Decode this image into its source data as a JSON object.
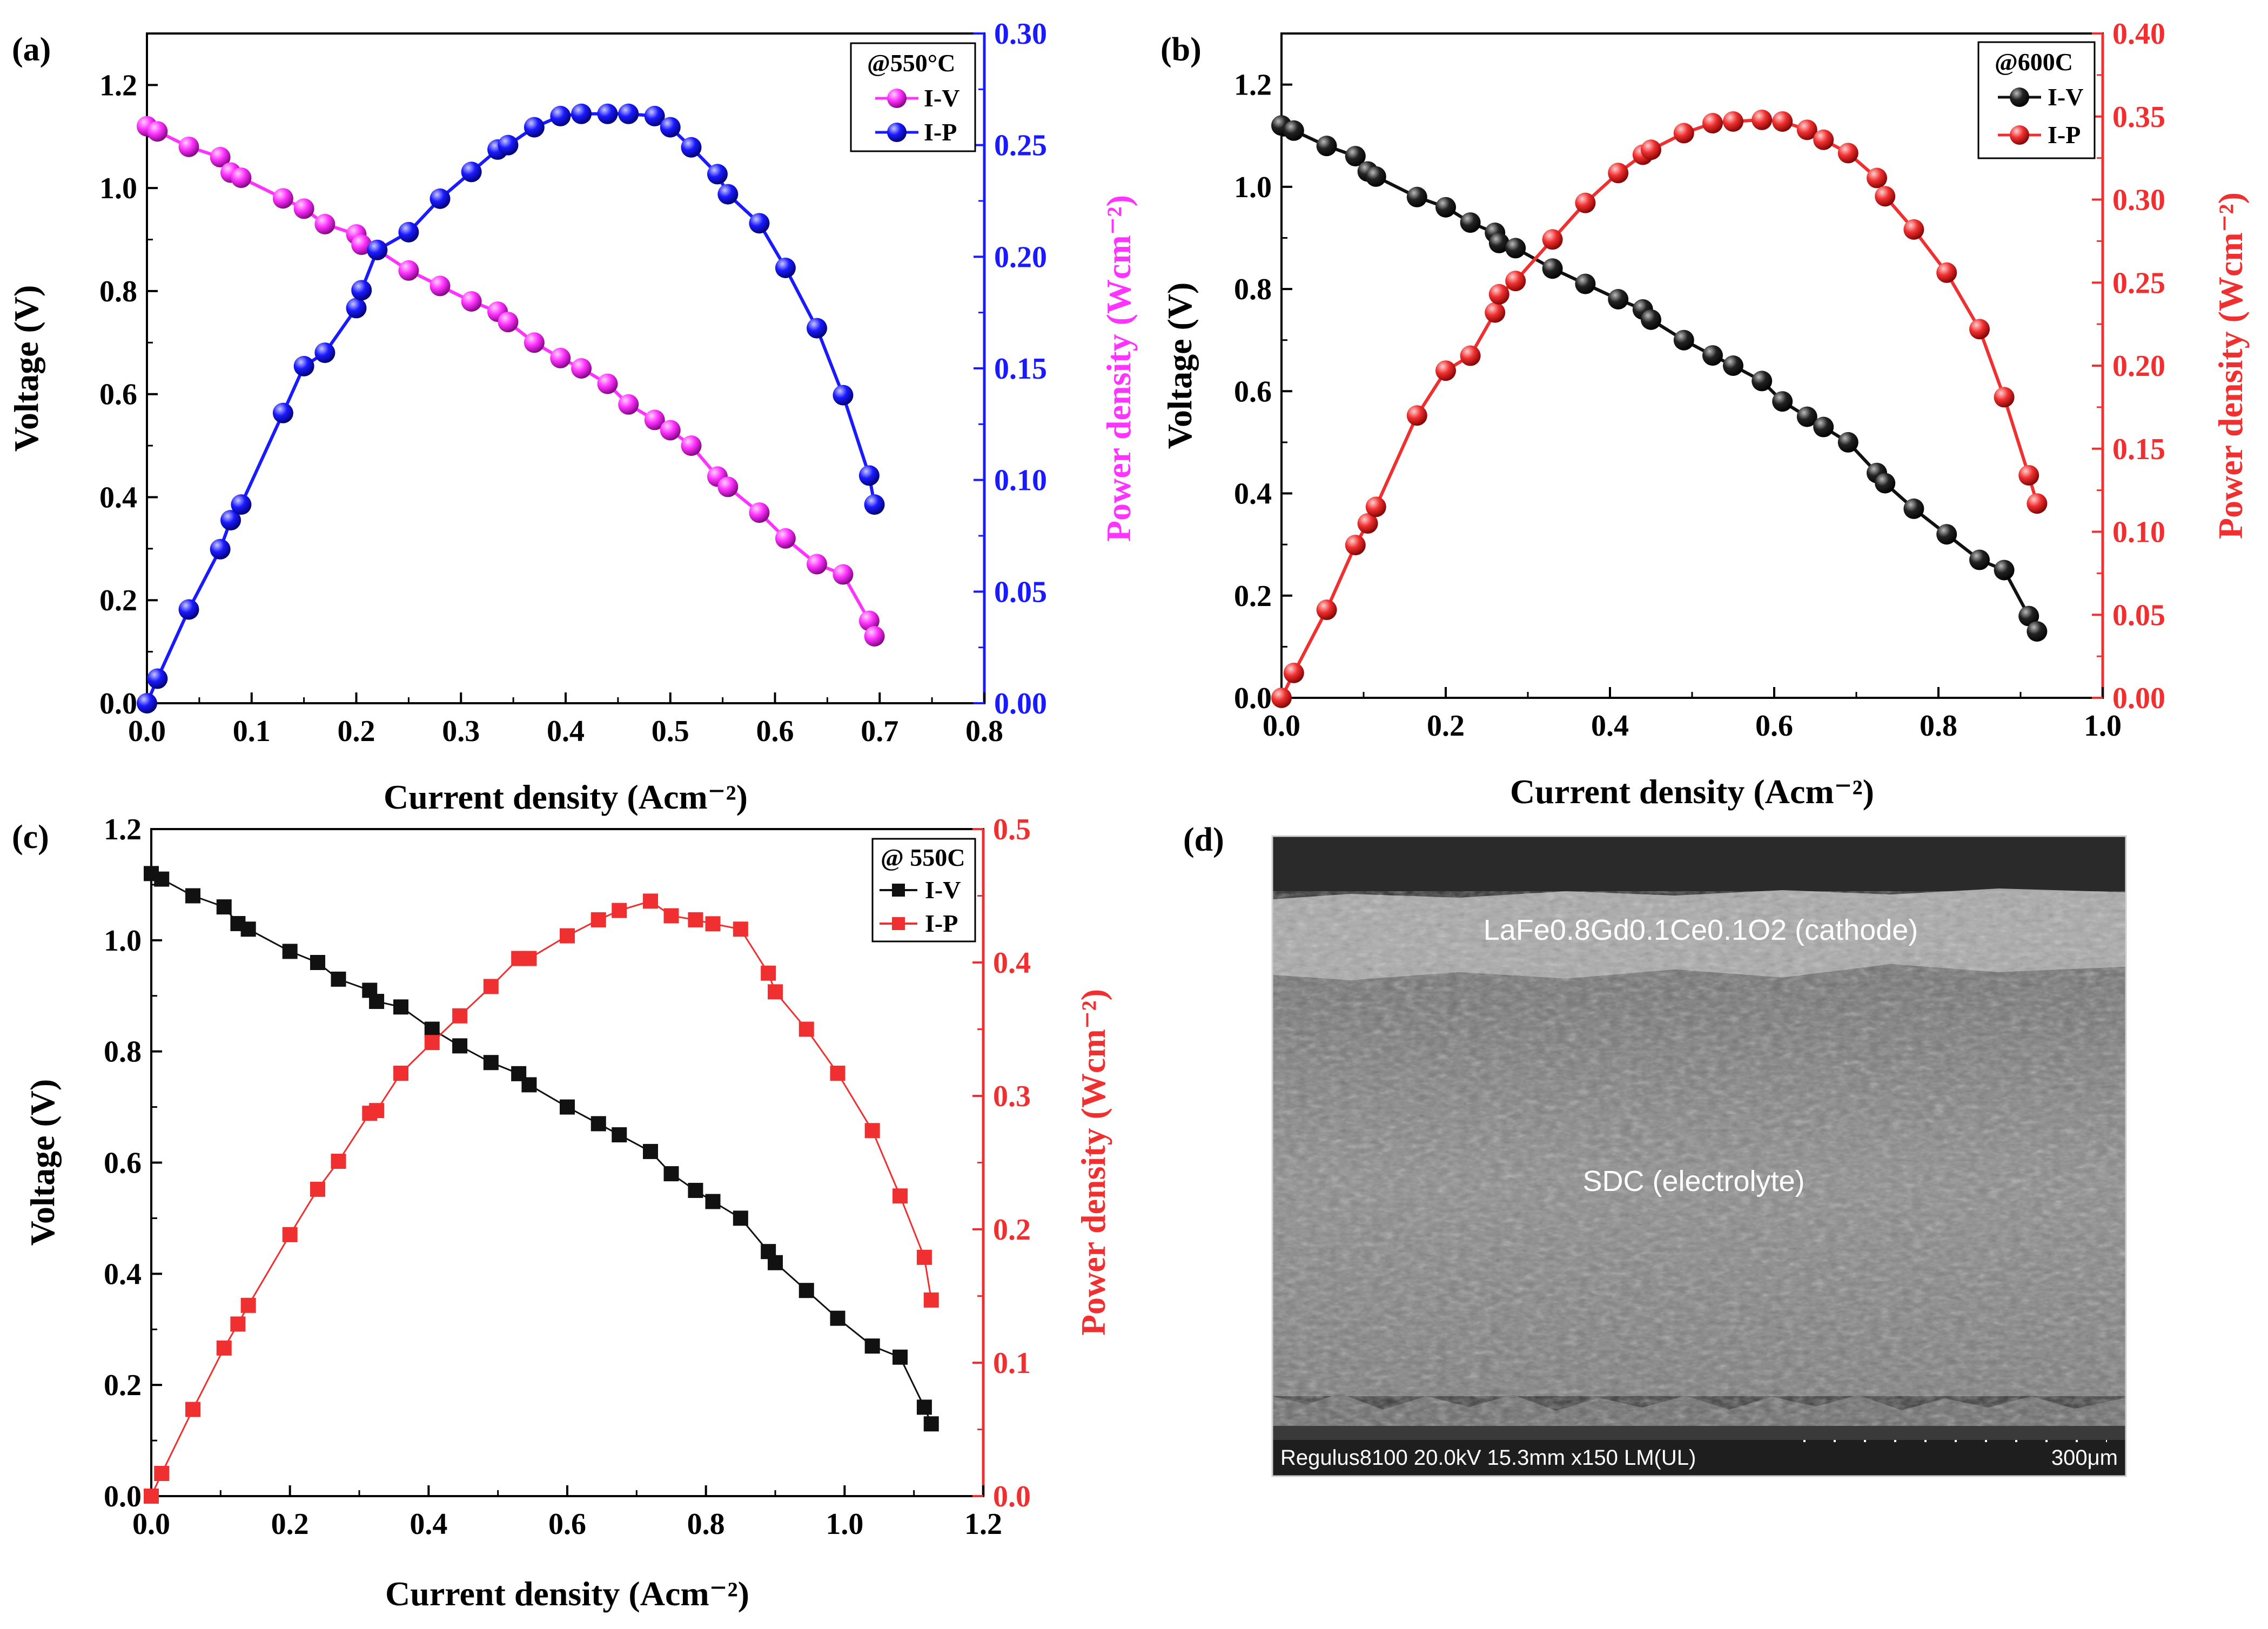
{
  "figure": {
    "panels": [
      {
        "label": "(a)",
        "legend": {
          "title": "@550°C",
          "series": [
            "I-V",
            "I-P"
          ]
        },
        "xlabel": "Current density (Acm⁻²)",
        "ylabel": "Voltage (V)",
        "y2label": "Power density (Wcm⁻²)",
        "marker": "sphere",
        "colors": {
          "iv": "#ff33ff",
          "ip": "#1a1aff",
          "y2axis": "#1a1aff",
          "y2title": "#ff33ff"
        }
      },
      {
        "label": "(b)",
        "legend": {
          "title": "@600C",
          "series": [
            "I-V",
            "I-P"
          ]
        },
        "xlabel": "Current density (Acm⁻²)",
        "ylabel": "Voltage (V)",
        "y2label": "Power density (Wcm⁻²)",
        "marker": "sphere",
        "colors": {
          "iv": "#111111",
          "ip": "#f03030",
          "y2axis": "#f03030",
          "y2title": "#f03030"
        }
      },
      {
        "label": "(c)",
        "legend": {
          "title": "@ 550C",
          "series": [
            "I-V",
            "I-P"
          ]
        },
        "xlabel": "Current density (Acm⁻²)",
        "ylabel": "Voltage (V)",
        "y2label": "Power density (Wcm⁻²)",
        "marker": "square",
        "colors": {
          "iv": "#111111",
          "ip": "#f03030",
          "y2axis": "#f03030",
          "y2title": "#f03030"
        }
      }
    ],
    "sem": {
      "label": "(d)",
      "cathode_label": "LaFe0.8Gd0.1Ce0.1O2 (cathode)",
      "electrolyte_label": "SDC (electrolyte)",
      "info_bar": "Regulus8100 20.0kV 15.3mm x150 LM(UL)",
      "scale_label": "300μm"
    }
  },
  "chart_data": [
    {
      "type": "line",
      "title": "@550°C",
      "xlabel": "Current density (Acm⁻²)",
      "ylabel": "Voltage (V)",
      "y2label": "Power density (Wcm⁻²)",
      "xlim": [
        0,
        0.8
      ],
      "ylim": [
        0,
        1.3
      ],
      "y2lim": [
        0,
        0.3
      ],
      "xticks": [
        0.0,
        0.1,
        0.2,
        0.3,
        0.4,
        0.5,
        0.6,
        0.7,
        0.8
      ],
      "yticks": [
        0.0,
        0.2,
        0.4,
        0.6,
        0.8,
        1.0,
        1.2
      ],
      "y2ticks": [
        0.0,
        0.05,
        0.1,
        0.15,
        0.2,
        0.25,
        0.3
      ],
      "legend_position": "top-right",
      "series": [
        {
          "name": "I-V",
          "axis": "left",
          "x": [
            0.0,
            0.01,
            0.04,
            0.07,
            0.08,
            0.09,
            0.13,
            0.15,
            0.17,
            0.2,
            0.205,
            0.22,
            0.25,
            0.28,
            0.31,
            0.335,
            0.345,
            0.37,
            0.395,
            0.415,
            0.44,
            0.46,
            0.485,
            0.5,
            0.52,
            0.545,
            0.555,
            0.585,
            0.61,
            0.64,
            0.665,
            0.69,
            0.695
          ],
          "y": [
            1.12,
            1.11,
            1.08,
            1.06,
            1.03,
            1.02,
            0.98,
            0.96,
            0.93,
            0.91,
            0.89,
            0.88,
            0.84,
            0.81,
            0.78,
            0.76,
            0.74,
            0.7,
            0.67,
            0.65,
            0.62,
            0.58,
            0.55,
            0.53,
            0.5,
            0.44,
            0.42,
            0.37,
            0.32,
            0.27,
            0.25,
            0.16,
            0.13
          ]
        },
        {
          "name": "I-P",
          "axis": "right",
          "x": [
            0.0,
            0.01,
            0.04,
            0.07,
            0.08,
            0.09,
            0.13,
            0.15,
            0.17,
            0.2,
            0.205,
            0.22,
            0.25,
            0.28,
            0.31,
            0.335,
            0.345,
            0.37,
            0.395,
            0.415,
            0.44,
            0.46,
            0.485,
            0.5,
            0.52,
            0.545,
            0.555,
            0.585,
            0.61,
            0.64,
            0.665,
            0.69,
            0.695
          ],
          "y": [
            0.0,
            0.011,
            0.042,
            0.069,
            0.082,
            0.089,
            0.13,
            0.151,
            0.157,
            0.177,
            0.185,
            0.203,
            0.211,
            0.226,
            0.238,
            0.248,
            0.25,
            0.258,
            0.263,
            0.264,
            0.264,
            0.264,
            0.263,
            0.258,
            0.249,
            0.237,
            0.228,
            0.215,
            0.195,
            0.168,
            0.138,
            0.102,
            0.089
          ]
        }
      ]
    },
    {
      "type": "line",
      "title": "@600C",
      "xlabel": "Current density (Acm⁻²)",
      "ylabel": "Voltage (V)",
      "y2label": "Power density (Wcm⁻²)",
      "xlim": [
        0,
        1.0
      ],
      "ylim": [
        0,
        1.3
      ],
      "y2lim": [
        0,
        0.4
      ],
      "xticks": [
        0.0,
        0.2,
        0.4,
        0.6,
        0.8,
        1.0
      ],
      "yticks": [
        0.0,
        0.2,
        0.4,
        0.6,
        0.8,
        1.0,
        1.2
      ],
      "y2ticks": [
        0.0,
        0.05,
        0.1,
        0.15,
        0.2,
        0.25,
        0.3,
        0.35,
        0.4
      ],
      "legend_position": "top-right",
      "series": [
        {
          "name": "I-V",
          "axis": "left",
          "x": [
            0.0,
            0.015,
            0.055,
            0.09,
            0.105,
            0.115,
            0.165,
            0.2,
            0.23,
            0.26,
            0.265,
            0.285,
            0.33,
            0.37,
            0.41,
            0.44,
            0.45,
            0.49,
            0.525,
            0.55,
            0.585,
            0.61,
            0.64,
            0.66,
            0.69,
            0.725,
            0.735,
            0.77,
            0.81,
            0.85,
            0.88,
            0.91,
            0.92
          ],
          "y": [
            1.12,
            1.11,
            1.08,
            1.06,
            1.03,
            1.02,
            0.98,
            0.96,
            0.93,
            0.91,
            0.89,
            0.88,
            0.84,
            0.81,
            0.78,
            0.76,
            0.74,
            0.7,
            0.67,
            0.65,
            0.62,
            0.58,
            0.55,
            0.53,
            0.5,
            0.44,
            0.42,
            0.37,
            0.32,
            0.27,
            0.25,
            0.16,
            0.13
          ]
        },
        {
          "name": "I-P",
          "axis": "right",
          "x": [
            0.0,
            0.015,
            0.055,
            0.09,
            0.105,
            0.115,
            0.165,
            0.2,
            0.23,
            0.26,
            0.265,
            0.285,
            0.33,
            0.37,
            0.41,
            0.44,
            0.45,
            0.49,
            0.525,
            0.55,
            0.585,
            0.61,
            0.64,
            0.66,
            0.69,
            0.725,
            0.735,
            0.77,
            0.81,
            0.85,
            0.88,
            0.91,
            0.92
          ],
          "y": [
            0.0,
            0.015,
            0.053,
            0.092,
            0.105,
            0.115,
            0.17,
            0.197,
            0.206,
            0.232,
            0.243,
            0.251,
            0.276,
            0.298,
            0.316,
            0.327,
            0.33,
            0.34,
            0.346,
            0.347,
            0.348,
            0.347,
            0.342,
            0.336,
            0.328,
            0.313,
            0.302,
            0.282,
            0.256,
            0.222,
            0.181,
            0.134,
            0.117
          ]
        }
      ]
    },
    {
      "type": "line",
      "title": "@ 550C",
      "xlabel": "Current density (Acm⁻²)",
      "ylabel": "Voltage (V)",
      "y2label": "Power density (Wcm⁻²)",
      "xlim": [
        0,
        1.2
      ],
      "ylim": [
        0,
        1.2
      ],
      "y2lim": [
        0,
        0.5
      ],
      "xticks": [
        0.0,
        0.2,
        0.4,
        0.6,
        0.8,
        1.0,
        1.2
      ],
      "yticks": [
        0.0,
        0.2,
        0.4,
        0.6,
        0.8,
        1.0,
        1.2
      ],
      "y2ticks": [
        0.0,
        0.1,
        0.2,
        0.3,
        0.4,
        0.5
      ],
      "legend_position": "top-right",
      "series": [
        {
          "name": "I-V",
          "axis": "left",
          "x": [
            0.0,
            0.015,
            0.06,
            0.105,
            0.125,
            0.14,
            0.2,
            0.24,
            0.27,
            0.315,
            0.325,
            0.36,
            0.405,
            0.445,
            0.49,
            0.53,
            0.545,
            0.6,
            0.645,
            0.675,
            0.72,
            0.75,
            0.785,
            0.81,
            0.85,
            0.89,
            0.9,
            0.945,
            0.99,
            1.04,
            1.08,
            1.115,
            1.125
          ],
          "y": [
            1.12,
            1.11,
            1.08,
            1.06,
            1.03,
            1.02,
            0.98,
            0.96,
            0.93,
            0.91,
            0.89,
            0.88,
            0.84,
            0.81,
            0.78,
            0.76,
            0.74,
            0.7,
            0.67,
            0.65,
            0.62,
            0.58,
            0.55,
            0.53,
            0.5,
            0.44,
            0.42,
            0.37,
            0.32,
            0.27,
            0.25,
            0.16,
            0.13
          ]
        },
        {
          "name": "I-P",
          "axis": "right",
          "x": [
            0.0,
            0.015,
            0.06,
            0.105,
            0.125,
            0.14,
            0.2,
            0.24,
            0.27,
            0.315,
            0.325,
            0.36,
            0.405,
            0.445,
            0.49,
            0.53,
            0.545,
            0.6,
            0.645,
            0.675,
            0.72,
            0.75,
            0.785,
            0.81,
            0.85,
            0.89,
            0.9,
            0.945,
            0.99,
            1.04,
            1.08,
            1.115,
            1.125
          ],
          "y": [
            0.0,
            0.017,
            0.065,
            0.111,
            0.129,
            0.143,
            0.196,
            0.23,
            0.251,
            0.287,
            0.289,
            0.317,
            0.34,
            0.36,
            0.382,
            0.403,
            0.403,
            0.42,
            0.432,
            0.439,
            0.446,
            0.435,
            0.432,
            0.429,
            0.425,
            0.392,
            0.378,
            0.35,
            0.317,
            0.274,
            0.225,
            0.179,
            0.147
          ]
        }
      ]
    }
  ]
}
